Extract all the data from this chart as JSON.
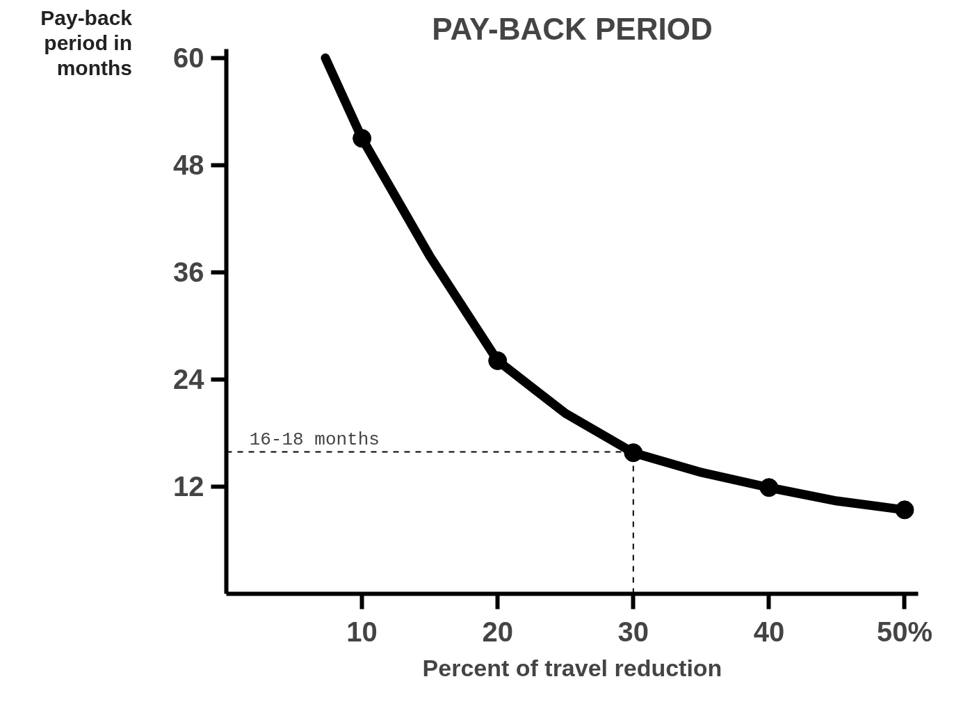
{
  "chart_data": {
    "type": "line",
    "title": "PAY-BACK PERIOD",
    "xlabel": "Percent of travel reduction",
    "ylabel": "Pay-back period in months",
    "xlim": [
      0,
      51
    ],
    "ylim": [
      0,
      61
    ],
    "xticks": [
      10,
      20,
      30,
      40,
      {
        "value": 50,
        "label": "50%"
      }
    ],
    "yticks": [
      12,
      24,
      36,
      48,
      60
    ],
    "grid": false,
    "series": [
      {
        "color": "#000000",
        "x": [
          7.3,
          10,
          15,
          20,
          25,
          30,
          35,
          40,
          45,
          50
        ],
        "values": [
          60,
          51,
          37.8,
          26.1,
          20.2,
          15.8,
          13.6,
          11.9,
          10.4,
          9.4
        ],
        "marker": "none"
      },
      {
        "type": "scatter",
        "color": "#000000",
        "x": [
          10,
          20,
          30,
          40,
          50
        ],
        "values": [
          51,
          26.1,
          15.8,
          11.9,
          9.4
        ],
        "marker": "circle"
      }
    ],
    "ref_lines": [
      {
        "axis": "y",
        "value": 15.9,
        "line_style": "dashed"
      },
      {
        "axis": "x",
        "value": 30,
        "line_style": "dashed"
      }
    ],
    "annotations": [
      {
        "text": "16-18 months",
        "x": 1.7,
        "y": 15.9
      }
    ]
  }
}
